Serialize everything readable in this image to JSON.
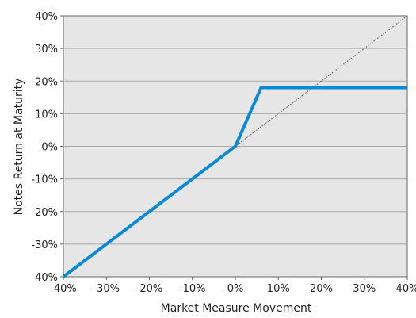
{
  "chart_data": {
    "type": "line",
    "title": "",
    "xlabel": "Market Measure Movement",
    "ylabel": "Notes Return at Maturity",
    "xlim": [
      -40,
      40
    ],
    "ylim": [
      -40,
      40
    ],
    "x_ticks": [
      -40,
      -30,
      -20,
      -10,
      0,
      10,
      20,
      30,
      40
    ],
    "y_ticks": [
      -40,
      -30,
      -20,
      -10,
      0,
      10,
      20,
      30,
      40
    ],
    "x_tick_labels": [
      "-40%",
      "-30%",
      "-20%",
      "-10%",
      "0%",
      "10%",
      "20%",
      "30%",
      "40%"
    ],
    "y_tick_labels": [
      "-40%",
      "-30%",
      "-20%",
      "-10%",
      "0%",
      "10%",
      "20%",
      "30%",
      "40%"
    ],
    "grid": "horizontal",
    "series": [
      {
        "style": "solid-thick",
        "color": "#0a8ad6",
        "points": [
          [
            -40,
            -40
          ],
          [
            0,
            0
          ],
          [
            6,
            18
          ],
          [
            40,
            18
          ]
        ]
      },
      {
        "style": "dotted-thin",
        "color": "#555555",
        "points": [
          [
            0,
            0
          ],
          [
            40,
            40
          ]
        ]
      }
    ],
    "plot_background": "#e6e6e6",
    "grid_color": "#aaaaaa"
  }
}
